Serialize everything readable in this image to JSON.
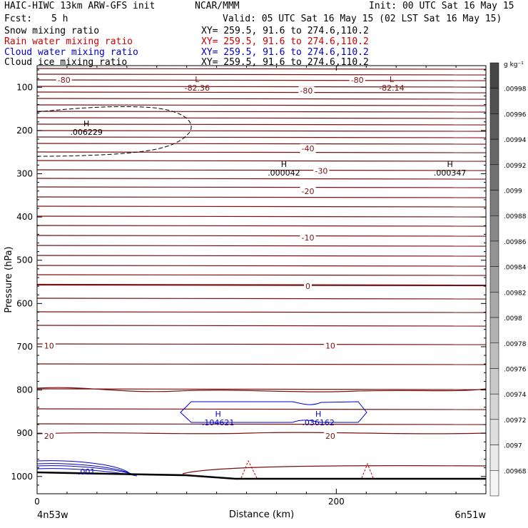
{
  "header": {
    "model": "HAIC-HIWC 13km ARW-GFS init",
    "center": "NCAR/MMM",
    "init": "Init: 00 UTC Sat 16 May 15",
    "fcst_label": "Fcst:",
    "fcst_value": "5 h",
    "valid": "Valid: 05 UTC Sat 16 May 15 (02 LST Sat 16 May 15)",
    "fields": [
      {
        "name": "Snow mixing ratio",
        "xy": "XY= 259.5, 91.6 to 274.6,110.2",
        "color": "#000000"
      },
      {
        "name": "Rain water mixing ratio",
        "xy": "XY= 259.5, 91.6 to 274.6,110.2",
        "color": "#cc0000"
      },
      {
        "name": "Cloud water mixing ratio",
        "xy": "XY= 259.5, 91.6 to 274.6,110.2",
        "color": "#0000cc"
      },
      {
        "name": "Cloud ice mixing ratio",
        "xy": "XY= 259.5, 91.6 to 274.6,110.2",
        "color": "#000000"
      }
    ]
  },
  "chart_data": {
    "type": "contour",
    "xlabel": "Distance (km)",
    "ylabel": "Pressure (hPa)",
    "x_ticks": [
      "0",
      "200"
    ],
    "y_ticks": [
      "100",
      "200",
      "300",
      "400",
      "500",
      "600",
      "700",
      "800",
      "900",
      "1000"
    ],
    "xlim": [
      0,
      300
    ],
    "ylim": [
      1040,
      50
    ],
    "x_endpoints": {
      "left": "4n53w",
      "right": "6n51w"
    },
    "temperature_contour_color": "#7a1010",
    "temperature_labels": [
      {
        "text": "-80",
        "x": 18,
        "p": 83
      },
      {
        "text": "-80",
        "x": 180,
        "p": 108
      },
      {
        "text": "-80",
        "x": 214,
        "p": 83
      },
      {
        "text": "-40",
        "x": 181,
        "p": 241
      },
      {
        "text": "-30",
        "x": 190,
        "p": 293
      },
      {
        "text": "-20",
        "x": 181,
        "p": 340
      },
      {
        "text": "-10",
        "x": 181,
        "p": 448
      },
      {
        "text": "0",
        "x": 181,
        "p": 560
      },
      {
        "text": "10",
        "x": 8,
        "p": 698
      },
      {
        "text": "10",
        "x": 196,
        "p": 698
      },
      {
        "text": "20",
        "x": 8,
        "p": 906
      },
      {
        "text": "20",
        "x": 196,
        "p": 906
      }
    ],
    "extrema": [
      {
        "kind": "L",
        "value": "-82.36",
        "x": 107,
        "p": 98,
        "color": "#7a1010"
      },
      {
        "kind": "L",
        "value": "-82.14",
        "x": 237,
        "p": 98,
        "color": "#7a1010"
      },
      {
        "kind": "H",
        "value": ".006229",
        "x": 33,
        "p": 200,
        "color": "#000000"
      },
      {
        "kind": "H",
        "value": ".000042",
        "x": 165,
        "p": 294,
        "color": "#000000"
      },
      {
        "kind": "H",
        "value": ".000347",
        "x": 276,
        "p": 294,
        "color": "#000000"
      },
      {
        "kind": "H",
        "value": ".104621",
        "x": 121,
        "p": 872,
        "color": "#0000cc"
      },
      {
        "kind": "H",
        "value": ".036162",
        "x": 188,
        "p": 872,
        "color": "#0000cc"
      }
    ],
    "cloud_water_labels": [
      {
        "text": ".001",
        "x": 33,
        "p": 989,
        "color": "#0000cc"
      }
    ],
    "colorbar": {
      "unit": "g kg⁻¹",
      "labels": [
        ".00998",
        ".00996",
        ".00994",
        ".00992",
        ".0099",
        ".00988",
        ".00986",
        ".00984",
        ".00982",
        ".0098",
        ".00978",
        ".00976",
        ".00974",
        ".00972",
        ".0097",
        ".00968"
      ]
    }
  }
}
